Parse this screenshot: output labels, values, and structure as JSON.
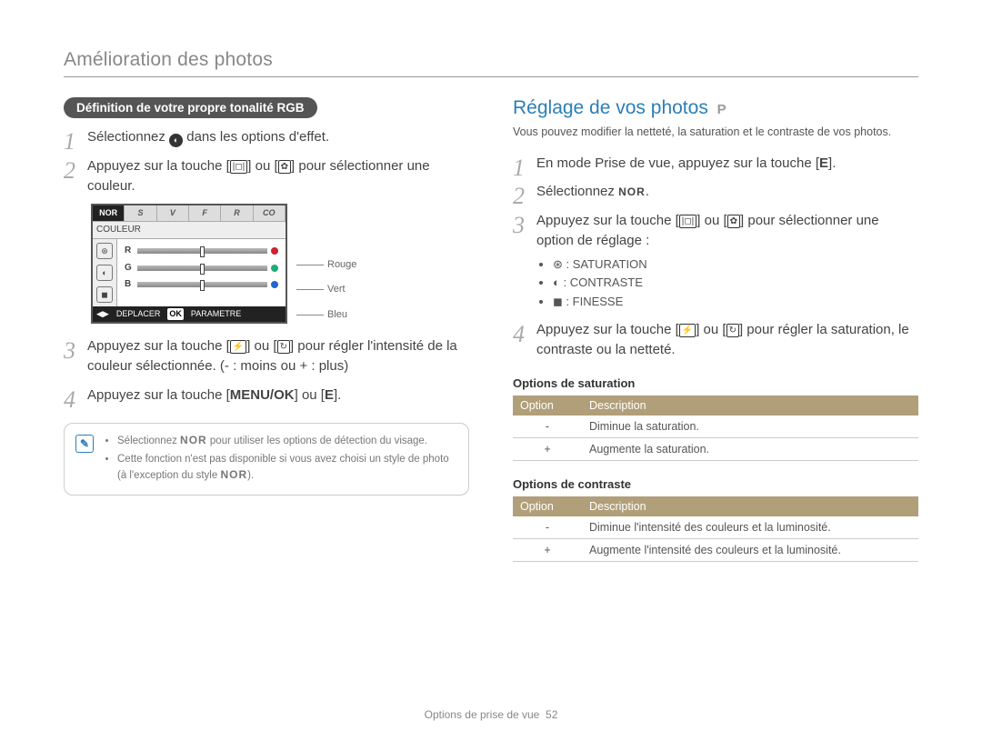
{
  "page_title": "Amélioration des photos",
  "footer": {
    "section": "Options de prise de vue",
    "page": "52"
  },
  "left": {
    "pill": "Définition de votre propre tonalité RGB",
    "step1_a": "Sélectionnez ",
    "step1_b": " dans les options d'effet.",
    "step2": "Appuyez sur la touche [",
    "step2_mid": "] ou [",
    "step2_end": "] pour sélectionner une couleur.",
    "step3": "Appuyez sur la touche [",
    "step3_mid": "] ou [",
    "step3_end": "] pour régler l'intensité de la couleur sélectionnée. (- : moins ou + : plus)",
    "step4_a": "Appuyez sur la touche [",
    "step4_menu": "MENU/OK",
    "step4_b": "] ou [",
    "step4_e": "E",
    "step4_c": "].",
    "lcd": {
      "tab_active": "NOR",
      "tabs_rest": [
        "S",
        "V",
        "F",
        "R",
        "CO"
      ],
      "label": "COULEUR",
      "rows": [
        {
          "ch": "R",
          "color": "#c23"
        },
        {
          "ch": "G",
          "color": "#2a7"
        },
        {
          "ch": "B",
          "color": "#26c"
        }
      ],
      "foot_move": "DEPLACER",
      "foot_ok": "OK",
      "foot_set": "PARAMETRE"
    },
    "legend": {
      "r": "Rouge",
      "g": "Vert",
      "b": "Bleu"
    },
    "note1_a": "Sélectionnez ",
    "note1_nor": "NOR",
    "note1_b": " pour utiliser les options de détection du visage.",
    "note2_a": "Cette fonction n'est pas disponible si vous avez choisi un style de photo (à l'exception du style ",
    "note2_nor": "NOR",
    "note2_b": ")."
  },
  "right": {
    "title": "Réglage de vos photos",
    "mode": "P",
    "intro": "Vous pouvez modifier la netteté, la saturation et le contraste de vos photos.",
    "step1_a": "En mode Prise de vue, appuyez sur la touche [",
    "step1_e": "E",
    "step1_b": "].",
    "step2_a": "Sélectionnez ",
    "step2_nor": "NOR",
    "step2_b": ".",
    "step3_a": "Appuyez sur la touche [",
    "step3_mid": "] ou [",
    "step3_b": "] pour sélectionner une option de réglage :",
    "opts": {
      "sat": ": SATURATION",
      "con": ": CONTRASTE",
      "fin": ": FINESSE"
    },
    "step4_a": "Appuyez sur la touche [",
    "step4_mid": "] ou [",
    "step4_b": "] pour régler la saturation, le contraste ou la netteté.",
    "sat_head": "Options de saturation",
    "con_head": "Options de contraste",
    "th_opt": "Option",
    "th_desc": "Description",
    "sat_rows": [
      {
        "o": "-",
        "d": "Diminue la saturation."
      },
      {
        "o": "+",
        "d": "Augmente la saturation."
      }
    ],
    "con_rows": [
      {
        "o": "-",
        "d": "Diminue l'intensité des couleurs et la luminosité."
      },
      {
        "o": "+",
        "d": "Augmente l'intensité des couleurs et la luminosité."
      }
    ]
  },
  "colors": {
    "accent": "#2a7fb8",
    "table_header": "#b19f7a"
  }
}
